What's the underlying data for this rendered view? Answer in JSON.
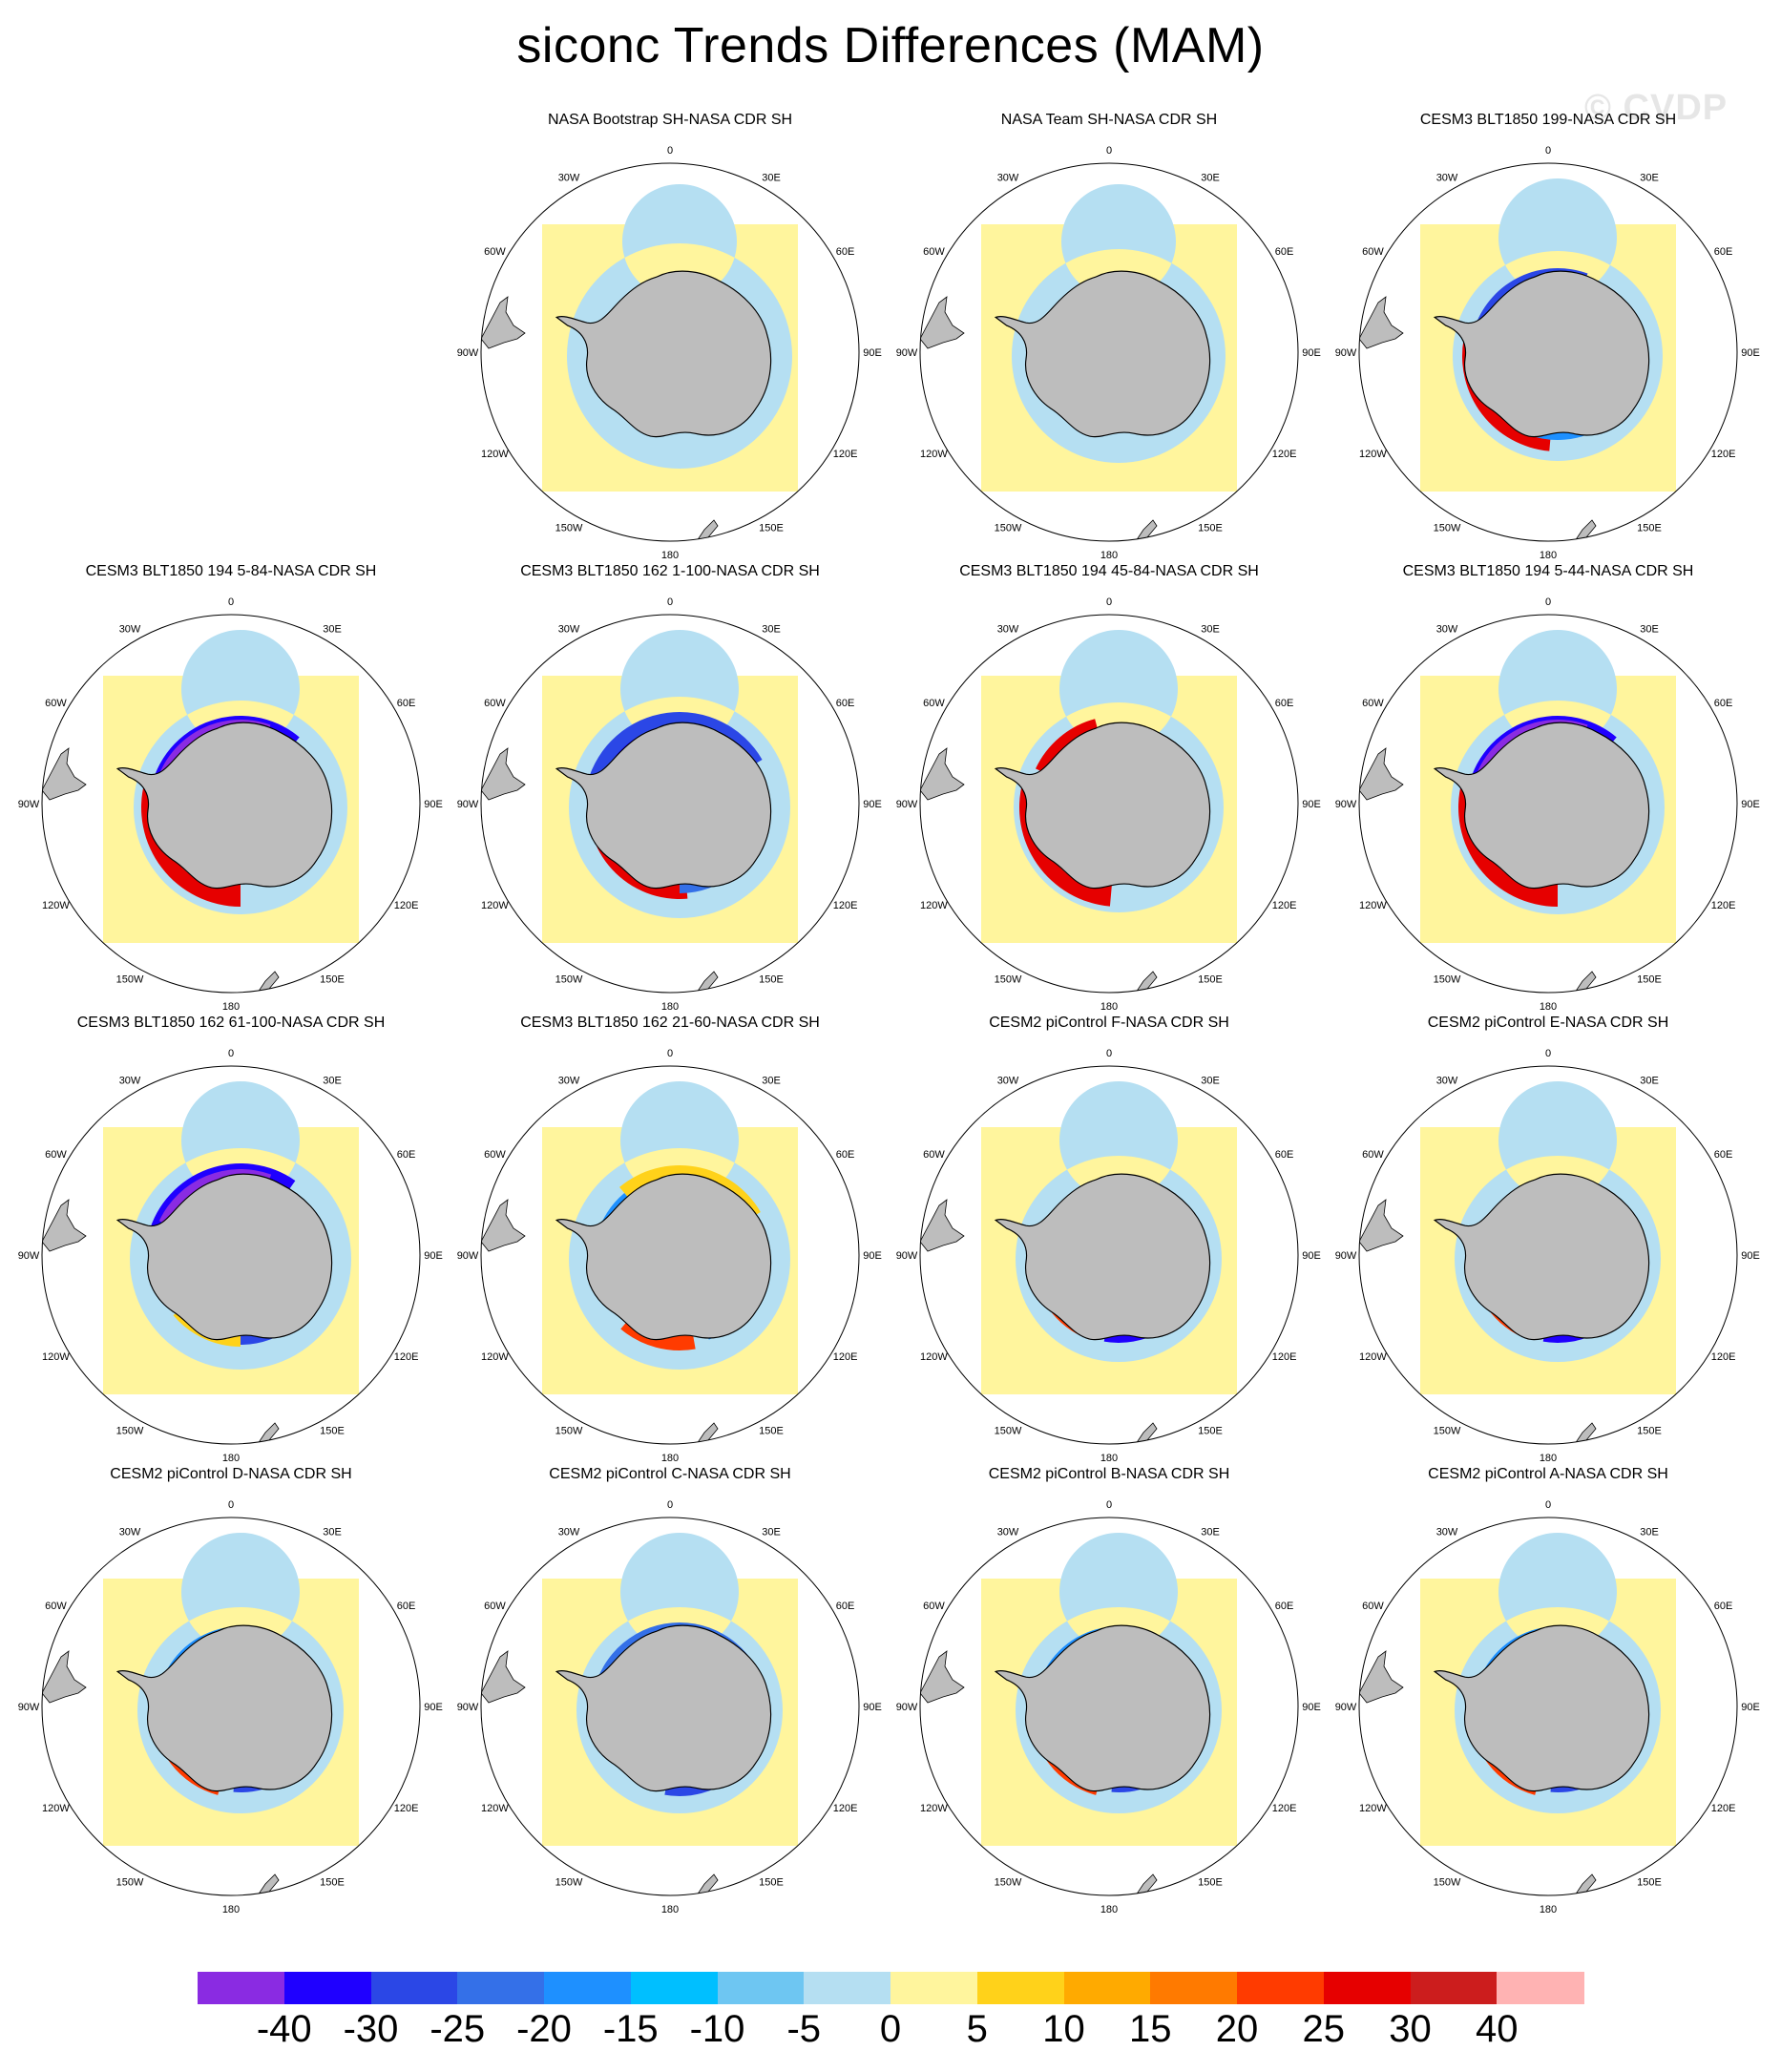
{
  "title": "siconc Trends Differences (MAM)",
  "watermark": "© CVDP",
  "lon_labels": [
    "0",
    "30E",
    "60E",
    "90E",
    "120E",
    "150E",
    "180",
    "150W",
    "120W",
    "90W",
    "60W",
    "30W"
  ],
  "colorbar": {
    "labels": [
      "-40",
      "-30",
      "-25",
      "-20",
      "-15",
      "-10",
      "-5",
      "0",
      "5",
      "10",
      "15",
      "20",
      "25",
      "30",
      "40"
    ],
    "colors": [
      "#8a2be2",
      "#1f00ff",
      "#2b47e6",
      "#3470e8",
      "#1e90ff",
      "#00bfff",
      "#6ec6f2",
      "#b5dff2",
      "#fff59d",
      "#ffd21a",
      "#ffaa00",
      "#ff7a00",
      "#ff3b00",
      "#e60000",
      "#cc1d1d",
      "#ffb3b3"
    ]
  },
  "panels": [
    {
      "title": "NASA Bootstrap SH-NASA CDR SH",
      "pattern": "bootstrap"
    },
    {
      "title": "NASA Team SH-NASA CDR SH",
      "pattern": "team"
    },
    {
      "title": "CESM3 BLT1850 199-NASA CDR SH",
      "pattern": "a"
    },
    {
      "title": "CESM3 BLT1850 194 5-84-NASA CDR SH",
      "pattern": "b"
    },
    {
      "title": "CESM3 BLT1850 162 1-100-NASA CDR SH",
      "pattern": "c"
    },
    {
      "title": "CESM3 BLT1850 194 45-84-NASA CDR SH",
      "pattern": "d"
    },
    {
      "title": "CESM3 BLT1850 194 5-44-NASA CDR SH",
      "pattern": "b"
    },
    {
      "title": "CESM3 BLT1850 162 61-100-NASA CDR SH",
      "pattern": "e"
    },
    {
      "title": "CESM3 BLT1850 162 21-60-NASA CDR SH",
      "pattern": "f"
    },
    {
      "title": "CESM2 piControl F-NASA CDR SH",
      "pattern": "g"
    },
    {
      "title": "CESM2 piControl E-NASA CDR SH",
      "pattern": "g"
    },
    {
      "title": "CESM2 piControl D-NASA CDR SH",
      "pattern": "h"
    },
    {
      "title": "CESM2 piControl C-NASA CDR SH",
      "pattern": "i"
    },
    {
      "title": "CESM2 piControl B-NASA CDR SH",
      "pattern": "h"
    },
    {
      "title": "CESM2 piControl A-NASA CDR SH",
      "pattern": "h"
    }
  ]
}
